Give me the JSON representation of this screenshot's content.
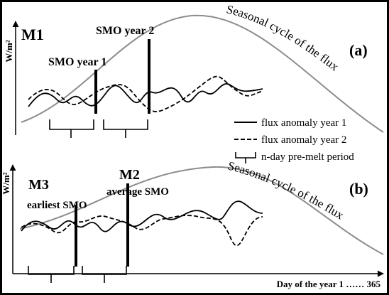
{
  "panels": {
    "a": {
      "model": "M1",
      "panel_label": "(a)",
      "y_axis_label": "W/m²",
      "curve_label": "Seasonal cycle of the flux",
      "markers": [
        "SMO year 1",
        "SMO year 2"
      ]
    },
    "b": {
      "models": [
        "M2",
        "M3"
      ],
      "panel_label": "(b)",
      "y_axis_label": "W/m²",
      "curve_label": "Seasonal cycle of the flux",
      "markers": [
        "average SMO",
        "earliest SMO"
      ],
      "x_axis_label": "Day of the year 1 …… 365"
    }
  },
  "legend": {
    "items": [
      "flux anomaly year 1",
      "flux anomaly year 2",
      "n-day pre-melt period"
    ]
  }
}
